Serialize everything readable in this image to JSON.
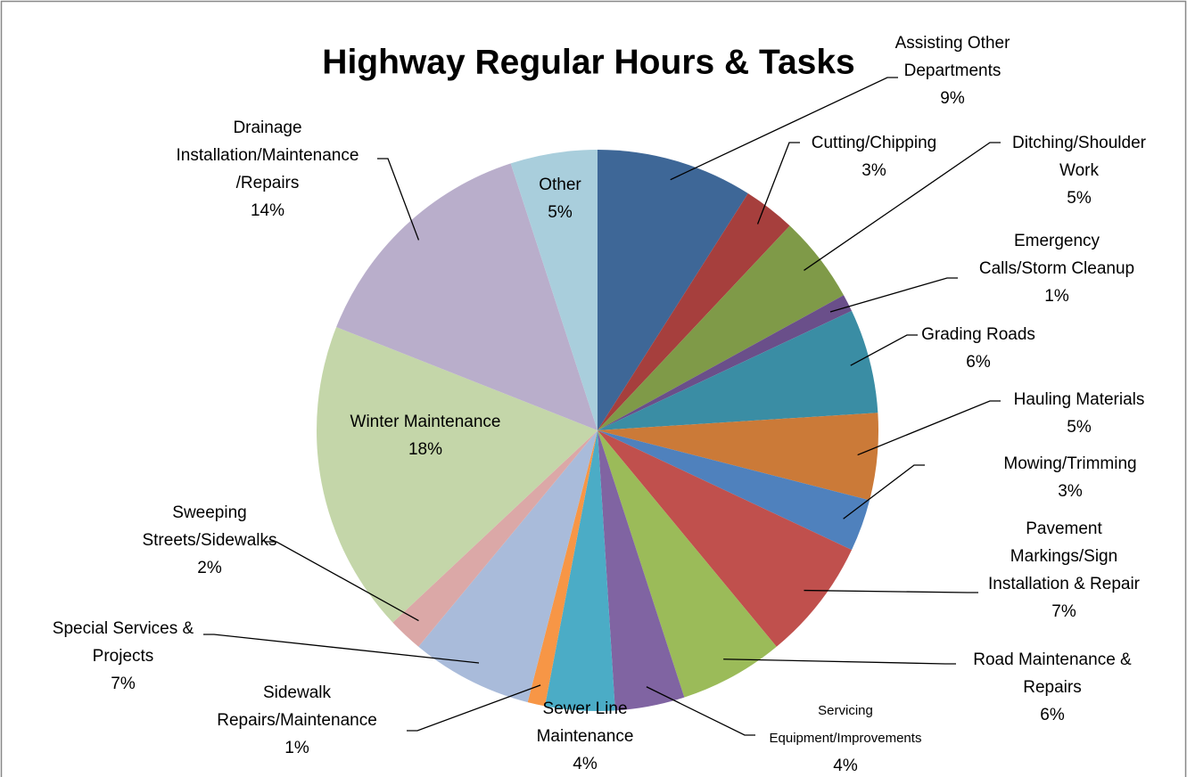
{
  "chart_data": {
    "type": "pie",
    "title": "Highway Regular Hours & Tasks",
    "categories": [
      "Assisting Other\nDepartments",
      "Cutting/Chipping",
      "Ditching/Shoulder\nWork",
      "Emergency\nCalls/Storm Cleanup",
      "Grading Roads",
      "Hauling Materials",
      "Mowing/Trimming",
      "Pavement\nMarkings/Sign\nInstallation & Repair",
      "Road Maintenance &\nRepairs",
      "Servicing\nEquipment/Improvements",
      "Sewer Line\nMaintenance",
      "Sidewalk\nRepairs/Maintenance",
      "Special Services &\nProjects",
      "Sweeping\nStreets/Sidewalks",
      "Winter Maintenance",
      "Drainage\nInstallation/Maintenance\n/Repairs",
      "Other"
    ],
    "values": [
      9,
      3,
      5,
      1,
      6,
      5,
      3,
      7,
      6,
      4,
      4,
      1,
      7,
      2,
      18,
      14,
      5
    ],
    "value_labels": [
      "9%",
      "3%",
      "5%",
      "1%",
      "6%",
      "5%",
      "3%",
      "7%",
      "6%",
      "4%",
      "4%",
      "1%",
      "7%",
      "2%",
      "18%",
      "14%",
      "5%"
    ],
    "colors": [
      "#3E6797",
      "#A63F3D",
      "#7F9A48",
      "#6A4F8A",
      "#3A8DA4",
      "#CB7A38",
      "#4F81BD",
      "#C0504D",
      "#9BBB59",
      "#8064A2",
      "#4BACC6",
      "#F79646",
      "#A9BBDA",
      "#DBA8A7",
      "#C4D6A9",
      "#B9AECB",
      "#A9CEDC"
    ]
  }
}
